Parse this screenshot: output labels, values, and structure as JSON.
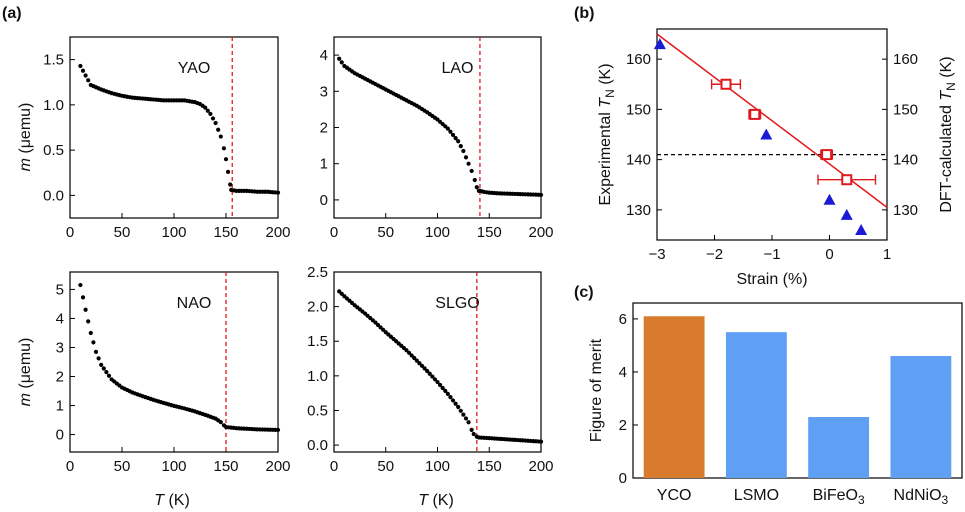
{
  "panel_labels": {
    "a": "(a)",
    "b": "(b)",
    "c": "(c)"
  },
  "colors": {
    "experimental": "#e0191c",
    "dft": "#1b1bd6",
    "fit_line": "#e0191c",
    "ref_line": "#000000",
    "ycO_bar": "#d97b2e",
    "other_bars": "#5fa0f4",
    "transition_line": "#e0191c"
  },
  "chart_data": [
    {
      "id": "a-yao",
      "type": "scatter",
      "panel": "(a)",
      "label": "YAO",
      "xlim": [
        0,
        200
      ],
      "ylim": [
        -0.25,
        1.75
      ],
      "xticks": [
        "0",
        "50",
        "100",
        "150",
        "200"
      ],
      "yticks": [
        "0.0",
        "0.5",
        "1.0",
        "1.5"
      ],
      "ytick_values": [
        0,
        0.5,
        1.0,
        1.5
      ],
      "ylabel_italic": "m",
      "ylabel_rest": " (μemu)",
      "transition_T": 156,
      "x": [
        10,
        20,
        30,
        40,
        50,
        60,
        70,
        80,
        90,
        100,
        110,
        120,
        125,
        130,
        135,
        140,
        145,
        148,
        150,
        152,
        154,
        155,
        160,
        170,
        180,
        190,
        200
      ],
      "y": [
        1.43,
        1.22,
        1.17,
        1.13,
        1.1,
        1.08,
        1.07,
        1.06,
        1.05,
        1.05,
        1.05,
        1.03,
        1.01,
        0.97,
        0.9,
        0.8,
        0.65,
        0.52,
        0.4,
        0.26,
        0.12,
        0.06,
        0.05,
        0.05,
        0.04,
        0.04,
        0.03
      ]
    },
    {
      "id": "a-lao",
      "type": "scatter",
      "panel": "(a)",
      "label": "LAO",
      "xlim": [
        0,
        200
      ],
      "ylim": [
        -0.5,
        4.5
      ],
      "xticks": [
        "0",
        "50",
        "100",
        "150",
        "200"
      ],
      "yticks": [
        "0",
        "1",
        "2",
        "3",
        "4"
      ],
      "ytick_values": [
        0,
        1,
        2,
        3,
        4
      ],
      "transition_T": 141,
      "x": [
        5,
        10,
        20,
        30,
        40,
        50,
        60,
        70,
        80,
        90,
        100,
        110,
        120,
        125,
        130,
        133,
        136,
        138,
        140,
        141,
        145,
        150,
        160,
        170,
        180,
        190,
        200
      ],
      "y": [
        3.9,
        3.7,
        3.5,
        3.35,
        3.2,
        3.05,
        2.9,
        2.75,
        2.6,
        2.42,
        2.22,
        1.97,
        1.62,
        1.35,
        1.0,
        0.8,
        0.55,
        0.35,
        0.25,
        0.25,
        0.22,
        0.2,
        0.18,
        0.17,
        0.16,
        0.15,
        0.14
      ]
    },
    {
      "id": "a-nao",
      "type": "scatter",
      "panel": "(a)",
      "label": "NAO",
      "xlim": [
        0,
        200
      ],
      "ylim": [
        -0.6,
        5.6
      ],
      "xticks": [
        "0",
        "50",
        "100",
        "150",
        "200"
      ],
      "yticks": [
        "0",
        "1",
        "2",
        "3",
        "4",
        "5"
      ],
      "ytick_values": [
        0,
        1,
        2,
        3,
        4,
        5
      ],
      "ylabel_italic": "m",
      "ylabel_rest": " (μemu)",
      "transition_T": 150,
      "x": [
        10,
        15,
        20,
        25,
        30,
        40,
        50,
        60,
        70,
        80,
        90,
        100,
        110,
        120,
        130,
        140,
        145,
        148,
        150,
        155,
        160,
        170,
        180,
        190,
        200
      ],
      "y": [
        5.15,
        4.3,
        3.5,
        2.85,
        2.4,
        1.9,
        1.62,
        1.45,
        1.32,
        1.2,
        1.09,
        0.99,
        0.9,
        0.8,
        0.68,
        0.55,
        0.43,
        0.32,
        0.26,
        0.24,
        0.22,
        0.2,
        0.18,
        0.17,
        0.16
      ]
    },
    {
      "id": "a-slgo",
      "type": "scatter",
      "panel": "(a)",
      "label": "SLGO",
      "xlim": [
        0,
        200
      ],
      "ylim": [
        -0.1,
        2.5
      ],
      "xticks": [
        "0",
        "50",
        "100",
        "150",
        "200"
      ],
      "yticks": [
        "0.0",
        "0.5",
        "1.0",
        "1.5",
        "2.0",
        "2.5"
      ],
      "ytick_values": [
        0,
        0.5,
        1.0,
        1.5,
        2.0,
        2.5
      ],
      "transition_T": 138,
      "x": [
        5,
        10,
        20,
        30,
        40,
        50,
        60,
        70,
        80,
        90,
        100,
        110,
        120,
        125,
        130,
        133,
        135,
        138,
        140,
        150,
        160,
        170,
        180,
        190,
        200
      ],
      "y": [
        2.22,
        2.15,
        2.02,
        1.9,
        1.77,
        1.63,
        1.5,
        1.37,
        1.22,
        1.07,
        0.91,
        0.74,
        0.55,
        0.44,
        0.33,
        0.22,
        0.16,
        0.12,
        0.11,
        0.1,
        0.09,
        0.08,
        0.07,
        0.06,
        0.05
      ]
    },
    {
      "id": "b",
      "type": "scatter",
      "panel": "(b)",
      "xlabel": "Strain (%)",
      "ylabel_left": {
        "pre": "Experimental ",
        "italic": "T",
        "sub": "N",
        "post": " (K)"
      },
      "ylabel_right": {
        "pre": "DFT-calculated ",
        "italic": "T",
        "sub": "N",
        "post": " (K)"
      },
      "xlim": [
        -3,
        1
      ],
      "ylim": [
        124,
        166
      ],
      "xticks": [
        "−3",
        "−2",
        "−1",
        "0",
        "1"
      ],
      "xtick_values": [
        -3,
        -2,
        -1,
        0,
        1
      ],
      "yticks": [
        "130",
        "140",
        "150",
        "160"
      ],
      "ytick_values": [
        130,
        140,
        150,
        160
      ],
      "series": [
        {
          "type": "experimental",
          "x": [
            -1.8,
            -1.3,
            -0.05,
            0.3
          ],
          "y": [
            155,
            149,
            141,
            136
          ],
          "xerr": [
            0.25,
            0.1,
            0.1,
            0.5
          ]
        },
        {
          "type": "dft",
          "x": [
            -2.95,
            -1.1,
            0.0,
            0.3,
            0.55
          ],
          "y": [
            163,
            145,
            132,
            129,
            126
          ]
        }
      ],
      "fit_line": {
        "x": [
          -3,
          1
        ],
        "y": [
          165,
          130.5
        ]
      },
      "reference_y": 141
    },
    {
      "id": "c",
      "type": "bar",
      "panel": "(c)",
      "ylabel": "Figure of merit",
      "ylim": [
        0,
        6.6
      ],
      "yticks": [
        "0",
        "2",
        "4",
        "6"
      ],
      "ytick_values": [
        0,
        2,
        4,
        6
      ],
      "categories": [
        {
          "base": "YCO",
          "sub": ""
        },
        {
          "base": "LSMO",
          "sub": ""
        },
        {
          "base": "BiFeO",
          "sub": "3"
        },
        {
          "base": "NdNiO",
          "sub": "3"
        }
      ],
      "values": [
        6.1,
        5.5,
        2.3,
        4.6
      ]
    }
  ]
}
